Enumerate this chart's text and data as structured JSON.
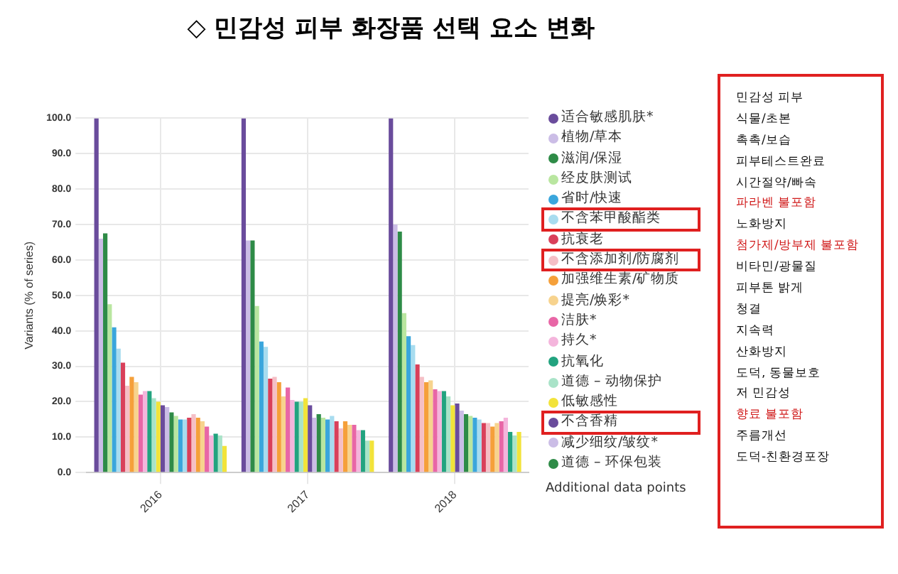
{
  "chart_data": {
    "type": "bar",
    "title": "◇ 민감성 피부 화장품 선택 요소 변화",
    "ylabel": "Variants (% of series)",
    "categories": [
      "2016",
      "2017",
      "2018"
    ],
    "ylim": [
      0,
      100
    ],
    "yticks": [
      {
        "value": 0,
        "label": "0.0"
      },
      {
        "value": 10,
        "label": "10.0"
      },
      {
        "value": 20,
        "label": "20.0"
      },
      {
        "value": 30,
        "label": "30.0"
      },
      {
        "value": 40,
        "label": "40.0"
      },
      {
        "value": 50,
        "label": "50.0"
      },
      {
        "value": 60,
        "label": "60.0"
      },
      {
        "value": 70,
        "label": "70.0"
      },
      {
        "value": 80,
        "label": "80.0"
      },
      {
        "value": 90,
        "label": "90.0"
      },
      {
        "value": 100,
        "label": "100.0"
      }
    ],
    "grid": true,
    "legend": "right",
    "series": [
      {
        "name": "适合敏感肌肤*",
        "color": "#6a4c9c",
        "values": [
          100,
          100,
          100
        ]
      },
      {
        "name": "植物/草本",
        "color": "#cbbde6",
        "values": [
          66,
          65.5,
          70
        ]
      },
      {
        "name": "滋润/保湿",
        "color": "#2e8b47",
        "values": [
          67.5,
          65.5,
          68
        ]
      },
      {
        "name": "经皮肤测试",
        "color": "#b9e6a0",
        "values": [
          47.5,
          47,
          45
        ]
      },
      {
        "name": "省时/快速",
        "color": "#3aa6dc",
        "values": [
          41,
          37,
          38.5
        ]
      },
      {
        "name": "不含苯甲酸酯类",
        "color": "#a8dcef",
        "values": [
          35,
          35.5,
          36
        ]
      },
      {
        "name": "抗衰老",
        "color": "#d9405a",
        "values": [
          31,
          26.5,
          30.5
        ]
      },
      {
        "name": "不含添加剂/防腐剂",
        "color": "#f5bfc6",
        "values": [
          24.5,
          27,
          27
        ]
      },
      {
        "name": "加强维生素/矿物质",
        "color": "#f5a03a",
        "values": [
          27,
          25.5,
          25.5
        ]
      },
      {
        "name": "提亮/焕彩*",
        "color": "#f7d38e",
        "values": [
          25.5,
          21.5,
          26
        ]
      },
      {
        "name": "洁肤*",
        "color": "#e866a6",
        "values": [
          22,
          24,
          23.5
        ]
      },
      {
        "name": "持久*",
        "color": "#f4b5dc",
        "values": [
          23,
          20.5,
          23
        ]
      },
      {
        "name": "抗氧化",
        "color": "#22a37f",
        "values": [
          23,
          20,
          23
        ]
      },
      {
        "name": "道德 – 动物保护",
        "color": "#a9e3c8",
        "values": [
          21,
          20,
          21.5
        ]
      },
      {
        "name": "低敏感性",
        "color": "#f2e33a",
        "values": [
          20,
          21,
          19
        ]
      },
      {
        "name": "不含香精",
        "color": "#6a4c9c",
        "values": [
          19,
          19,
          19.5
        ]
      },
      {
        "name": "减少细纹/皱纹*",
        "color": "#cbbde6",
        "values": [
          18.5,
          15.5,
          17.5
        ]
      },
      {
        "name": "道德 – 环保包装",
        "color": "#2e8b47",
        "values": [
          17,
          16.5,
          16.5
        ]
      },
      {
        "color": "#b9e6a0",
        "values": [
          16,
          15.5,
          16
        ]
      },
      {
        "color": "#3aa6dc",
        "values": [
          15,
          15,
          15.5
        ]
      },
      {
        "color": "#a8dcef",
        "values": [
          15,
          16,
          15
        ]
      },
      {
        "color": "#d9405a",
        "values": [
          15.5,
          14.5,
          14
        ]
      },
      {
        "color": "#f5bfc6",
        "values": [
          16.5,
          12.5,
          14
        ]
      },
      {
        "color": "#f5a03a",
        "values": [
          15.5,
          14.5,
          13
        ]
      },
      {
        "color": "#f7d38e",
        "values": [
          14.5,
          13.5,
          14
        ]
      },
      {
        "color": "#e866a6",
        "values": [
          13,
          13.5,
          14.5
        ]
      },
      {
        "color": "#f4b5dc",
        "values": [
          10.5,
          12,
          15.5
        ]
      },
      {
        "color": "#22a37f",
        "values": [
          11,
          12,
          11.5
        ]
      },
      {
        "color": "#a9e3c8",
        "values": [
          10.5,
          9,
          10.5
        ]
      },
      {
        "color": "#f2e33a",
        "values": [
          7.5,
          9,
          11.5
        ]
      }
    ],
    "annotations": [
      "민감성 피부",
      "식물/초본",
      "촉촉/보습",
      "피부테스트완료",
      "시간절약/빠속",
      "파라벤 불포함",
      "노화방지",
      "첨가제/방부제 불포함",
      "비타민/광물질",
      "피부톤 밝게",
      "청결",
      "지속력",
      "산화방지",
      "도덕, 동물보호",
      "저 민감성",
      "향료 불포함",
      "주름개선",
      "도덕-친환경포장",
      "Additional data points"
    ]
  }
}
